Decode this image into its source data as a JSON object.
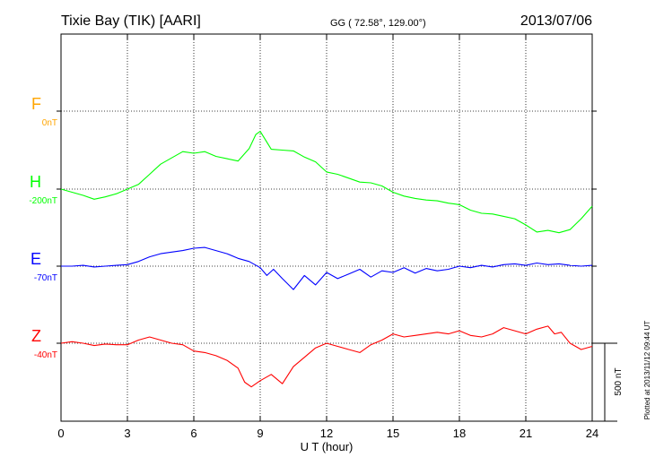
{
  "header": {
    "title": "Tixie Bay (TIK)  [AARI]",
    "coords": "GG ( 72.58°, 129.00°)",
    "date": "2013/07/06"
  },
  "footer_note": "Plotted at 2013/11/12 09:44 UT",
  "scale_label": "500 nT",
  "chart_data": {
    "type": "line",
    "xlabel": "U T (hour)",
    "x_ticks": [
      "0",
      "3",
      "6",
      "9",
      "12",
      "15",
      "18",
      "21",
      "24"
    ],
    "xlim": [
      0,
      24
    ],
    "scale_bar_nT": 500,
    "colors": {
      "F": "#ffa500",
      "H": "#00ff00",
      "E": "#0000ff",
      "Z": "#ff0000"
    },
    "series": [
      {
        "name": "F",
        "baseline_label": "0nT",
        "values": []
      },
      {
        "name": "H",
        "baseline_label": "-200nT",
        "x": [
          0,
          0.5,
          1,
          1.5,
          2,
          2.5,
          3,
          3.5,
          4,
          4.5,
          5,
          5.5,
          6,
          6.5,
          7,
          7.5,
          8,
          8.5,
          8.8,
          9,
          9.5,
          10,
          10.5,
          11,
          11.5,
          12,
          12.5,
          13,
          13.5,
          14,
          14.5,
          15,
          15.5,
          16,
          16.5,
          17,
          17.5,
          18,
          18.5,
          19,
          19.5,
          20,
          20.5,
          21,
          21.5,
          22,
          22.5,
          23,
          23.5,
          24
        ],
        "values": [
          0,
          -20,
          -40,
          -65,
          -50,
          -30,
          0,
          30,
          95,
          160,
          200,
          240,
          230,
          240,
          210,
          195,
          180,
          260,
          350,
          370,
          255,
          250,
          245,
          205,
          175,
          110,
          95,
          70,
          45,
          40,
          20,
          -20,
          -45,
          -60,
          -70,
          -75,
          -90,
          -100,
          -135,
          -155,
          -160,
          -175,
          -190,
          -230,
          -275,
          -265,
          -280,
          -260,
          -190,
          -110
        ]
      },
      {
        "name": "E",
        "baseline_label": "-70nT",
        "x": [
          0,
          0.5,
          1,
          1.5,
          2,
          2.5,
          3,
          3.5,
          4,
          4.5,
          5,
          5.5,
          6,
          6.5,
          7,
          7.5,
          8,
          8.5,
          9,
          9.3,
          9.6,
          10,
          10.5,
          11,
          11.5,
          12,
          12.5,
          13,
          13.5,
          14,
          14.5,
          15,
          15.5,
          16,
          16.5,
          17,
          17.5,
          18,
          18.5,
          19,
          19.5,
          20,
          20.5,
          21,
          21.5,
          22,
          22.5,
          23,
          23.5,
          24
        ],
        "values": [
          0,
          0,
          5,
          -5,
          0,
          5,
          10,
          30,
          60,
          80,
          90,
          100,
          115,
          120,
          100,
          80,
          50,
          30,
          -10,
          -60,
          -20,
          -80,
          -150,
          -60,
          -120,
          -40,
          -80,
          -50,
          -20,
          -70,
          -30,
          -40,
          -10,
          -45,
          -15,
          -30,
          -20,
          0,
          -10,
          5,
          -5,
          10,
          15,
          5,
          20,
          10,
          15,
          5,
          0,
          5
        ]
      },
      {
        "name": "Z",
        "baseline_label": "-40nT",
        "x": [
          0,
          0.5,
          1,
          1.5,
          2,
          2.5,
          3,
          3.5,
          4,
          4.5,
          5,
          5.5,
          6,
          6.5,
          7,
          7.5,
          8,
          8.3,
          8.6,
          9,
          9.5,
          10,
          10.5,
          11,
          11.5,
          12,
          12.5,
          13,
          13.5,
          14,
          14.5,
          15,
          15.5,
          16,
          16.5,
          17,
          17.5,
          18,
          18.5,
          19,
          19.5,
          20,
          20.5,
          21,
          21.5,
          22,
          22.3,
          22.6,
          23,
          23.5,
          24
        ],
        "values": [
          0,
          10,
          0,
          -15,
          -5,
          -10,
          -10,
          20,
          40,
          20,
          0,
          -10,
          -50,
          -60,
          -80,
          -110,
          -160,
          -250,
          -280,
          -240,
          -200,
          -260,
          -150,
          -90,
          -30,
          0,
          -20,
          -40,
          -60,
          -10,
          20,
          60,
          40,
          50,
          60,
          70,
          60,
          80,
          50,
          40,
          60,
          100,
          80,
          60,
          90,
          110,
          60,
          70,
          0,
          -40,
          -20
        ]
      }
    ]
  }
}
